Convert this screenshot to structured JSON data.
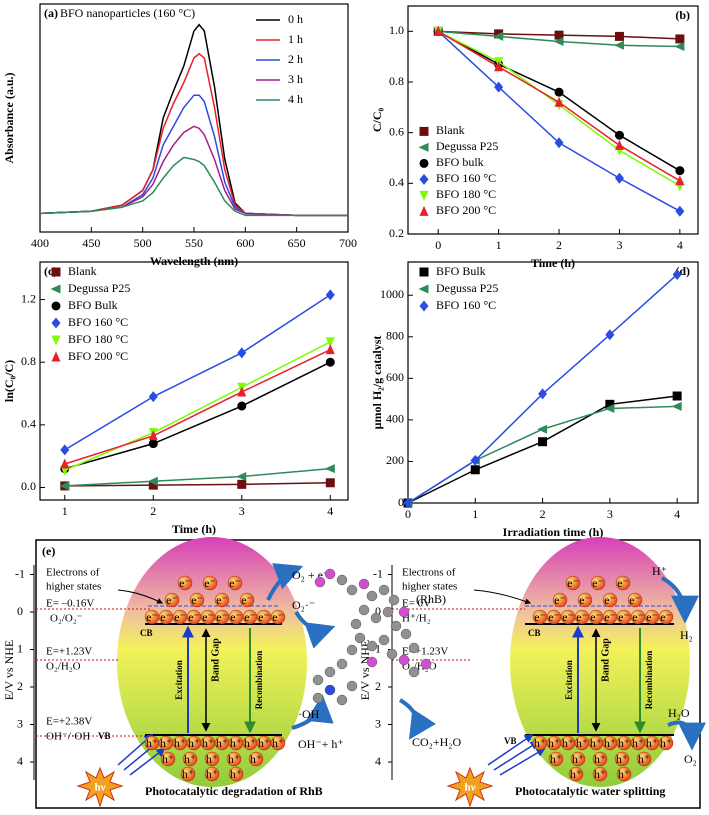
{
  "chart_data": [
    {
      "type": "line",
      "panel": "(a)",
      "title": "BFO nanoparticles (160 °C)",
      "xlabel": "Wavelength (nm)",
      "ylabel": "Absorbance (a.u.)",
      "x": [
        400,
        450,
        480,
        500,
        510,
        520,
        530,
        540,
        550,
        555,
        560,
        570,
        580,
        590,
        600,
        650,
        700
      ],
      "xlim": [
        400,
        700
      ],
      "xticks": [
        400,
        450,
        500,
        550,
        600,
        650,
        700
      ],
      "ylim": [
        0,
        1.1
      ],
      "legend": "upper right",
      "series": [
        {
          "name": "0 h",
          "color": "#000000",
          "values": [
            0.09,
            0.1,
            0.13,
            0.2,
            0.3,
            0.55,
            0.68,
            0.8,
            0.97,
            1.0,
            0.97,
            0.7,
            0.35,
            0.14,
            0.09,
            0.08,
            0.08
          ]
        },
        {
          "name": "1 h",
          "color": "#e8202a",
          "values": [
            0.09,
            0.1,
            0.13,
            0.2,
            0.3,
            0.5,
            0.62,
            0.72,
            0.84,
            0.86,
            0.84,
            0.6,
            0.3,
            0.13,
            0.09,
            0.08,
            0.08
          ]
        },
        {
          "name": "2 h",
          "color": "#2a4de0",
          "values": [
            0.09,
            0.1,
            0.12,
            0.18,
            0.26,
            0.42,
            0.51,
            0.6,
            0.66,
            0.66,
            0.63,
            0.46,
            0.24,
            0.12,
            0.09,
            0.08,
            0.08
          ]
        },
        {
          "name": "3 h",
          "color": "#a0208a",
          "values": [
            0.09,
            0.1,
            0.12,
            0.17,
            0.23,
            0.34,
            0.42,
            0.48,
            0.51,
            0.5,
            0.47,
            0.35,
            0.2,
            0.11,
            0.09,
            0.08,
            0.08
          ]
        },
        {
          "name": "4 h",
          "color": "#2e8b57",
          "values": [
            0.09,
            0.1,
            0.12,
            0.15,
            0.19,
            0.26,
            0.32,
            0.36,
            0.35,
            0.34,
            0.32,
            0.24,
            0.15,
            0.1,
            0.08,
            0.08,
            0.08
          ]
        }
      ]
    },
    {
      "type": "line",
      "panel": "(b)",
      "xlabel": "Time (h)",
      "ylabel": "C/C₀",
      "x": [
        0,
        1,
        2,
        3,
        4
      ],
      "xlim": [
        -0.5,
        4.3
      ],
      "xticks": [
        0,
        1,
        2,
        3,
        4
      ],
      "ylim": [
        0.2,
        1.1
      ],
      "yticks": [
        0.2,
        0.4,
        0.6,
        0.8,
        {
          "value": 1,
          "label": "1.0"
        }
      ],
      "legend": "center left",
      "series": [
        {
          "name": "Blank",
          "color": "#6b0f0f",
          "marker": "square",
          "values": [
            1,
            0.99,
            0.985,
            0.98,
            0.97
          ]
        },
        {
          "name": "Degussa P25",
          "color": "#2e8b57",
          "marker": "triangle-left",
          "values": [
            1,
            0.98,
            0.96,
            0.945,
            0.94
          ]
        },
        {
          "name": "BFO bulk",
          "color": "#000000",
          "marker": "circle",
          "values": [
            1,
            0.87,
            0.76,
            0.59,
            0.45
          ]
        },
        {
          "name": "BFO 160 °C",
          "color": "#2a4de0",
          "marker": "diamond",
          "values": [
            1,
            0.78,
            0.56,
            0.42,
            0.29
          ]
        },
        {
          "name": "BFO 180 °C",
          "color": "#7cfc00",
          "marker": "triangle-down",
          "values": [
            1,
            0.88,
            0.71,
            0.53,
            0.39
          ]
        },
        {
          "name": "BFO 200 °C",
          "color": "#e8202a",
          "marker": "triangle-up",
          "values": [
            1,
            0.86,
            0.72,
            0.55,
            0.41
          ]
        }
      ]
    },
    {
      "type": "line",
      "panel": "(c)",
      "xlabel": "Time (h)",
      "ylabel": "ln(C₀/C)",
      "x": [
        1,
        2,
        3,
        4
      ],
      "xlim": [
        0.72,
        4.2
      ],
      "xticks": [
        1,
        2,
        3,
        4
      ],
      "ylim": [
        -0.08,
        1.44
      ],
      "yticks": [
        {
          "value": 0,
          "label": "0.0"
        },
        0.4,
        0.8,
        1.2
      ],
      "legend": "upper left",
      "series": [
        {
          "name": "Blank",
          "color": "#6b0f0f",
          "marker": "square",
          "values": [
            0.01,
            0.015,
            0.02,
            0.03
          ]
        },
        {
          "name": "Degussa P25",
          "color": "#2e8b57",
          "marker": "triangle-left",
          "values": [
            0.01,
            0.04,
            0.07,
            0.12
          ]
        },
        {
          "name": "BFO Bulk",
          "color": "#000000",
          "marker": "circle",
          "values": [
            0.12,
            0.28,
            0.52,
            0.8
          ]
        },
        {
          "name": "BFO 160 °C",
          "color": "#2a4de0",
          "marker": "diamond",
          "values": [
            0.24,
            0.58,
            0.86,
            1.23
          ]
        },
        {
          "name": "BFO 180 °C",
          "color": "#7cfc00",
          "marker": "triangle-down",
          "values": [
            0.11,
            0.35,
            0.64,
            0.93
          ]
        },
        {
          "name": "BFO 200 °C",
          "color": "#e8202a",
          "marker": "triangle-up",
          "values": [
            0.15,
            0.33,
            0.61,
            0.88
          ]
        }
      ]
    },
    {
      "type": "line",
      "panel": "(d)",
      "xlabel": "Irradiation time (h)",
      "ylabel": "µmol H₂/g catalyst",
      "x": [
        0,
        1,
        2,
        3,
        4
      ],
      "xlim": [
        0,
        4.31
      ],
      "xticks": [
        0,
        1,
        2,
        3,
        4
      ],
      "ylim": [
        0,
        1160
      ],
      "yticks": [
        0,
        200,
        400,
        600,
        800,
        1000
      ],
      "legend": "upper left",
      "series": [
        {
          "name": "BFO Bulk",
          "color": "#000000",
          "marker": "square",
          "values": [
            0,
            160,
            295,
            475,
            515
          ]
        },
        {
          "name": "Degussa P25",
          "color": "#2e8b57",
          "marker": "triangle-left",
          "values": [
            0,
            205,
            355,
            455,
            465
          ]
        },
        {
          "name": "BFO 160 °C",
          "color": "#2a4de0",
          "marker": "diamond",
          "values": [
            0,
            205,
            525,
            810,
            1100
          ]
        }
      ]
    }
  ],
  "diagram": {
    "panel": "(e)",
    "axis_label": "E/V vs NHE",
    "ticks": [
      -1,
      0,
      1,
      2,
      3,
      4
    ],
    "electron": "e⁻",
    "hole": "h⁺",
    "left": {
      "higher_states": [
        "Electrons of",
        "higher states"
      ],
      "e1": "E= –0.16V",
      "couple1": "O₂/O₂⁻",
      "cb": "CB",
      "e2": "E=+1.23V",
      "couple2": "O₂/H₂O",
      "e3": "E=+2.38V",
      "couple3": "OH⁻/·OH",
      "vb": "VB",
      "excitation": "Excitation",
      "band_gap": "Band Gap",
      "recombination": "Recombination",
      "o2_e": "O₂ + e⁻",
      "o2_rad": "O₂·⁻",
      "rhb": "(RhB)",
      "oh": "·OH",
      "oh_h": "OH⁻+ h⁺",
      "co2": "CO₂+H₂O",
      "hv": "hν",
      "caption": "Photocatalytic degradation of RhB"
    },
    "right": {
      "higher_states": [
        "Electrons of",
        "higher states"
      ],
      "e1": "E= 0V",
      "couple1": "H⁺/H₂",
      "cb": "CB",
      "e2": "E=+1.23V",
      "couple2": "O₂/H₂O",
      "vb": "VB",
      "excitation": "Excitation",
      "band_gap": "Band Gap",
      "recombination": "Recombination",
      "h_plus": "H⁺",
      "h2": "H₂",
      "h2o": "H₂O",
      "o2": "O₂",
      "hv": "hν",
      "caption": "Photocatalytic water splitting"
    }
  }
}
